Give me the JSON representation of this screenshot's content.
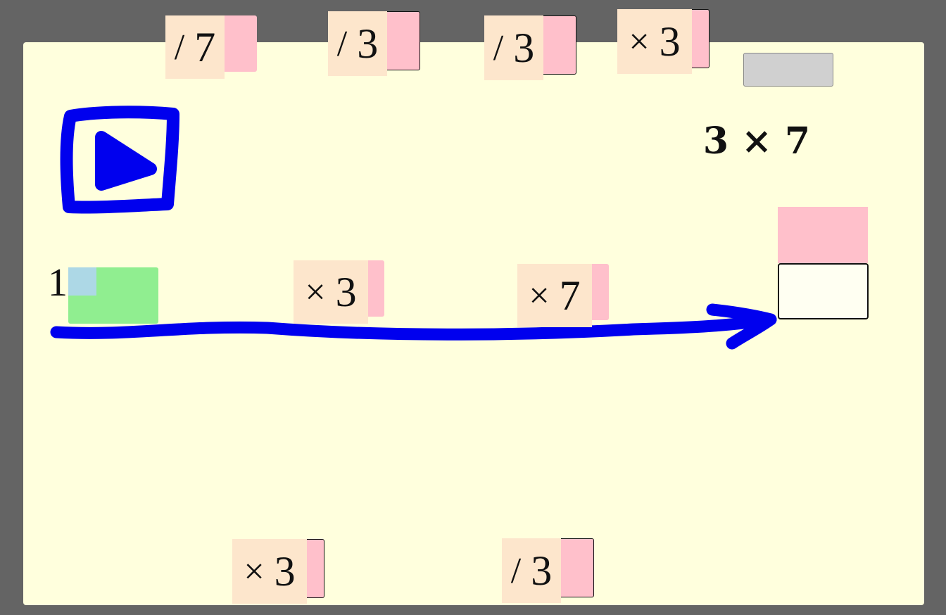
{
  "palette_cards": [
    {
      "op": "/",
      "num": "7"
    },
    {
      "op": "/",
      "num": "3"
    },
    {
      "op": "/",
      "num": "3"
    },
    {
      "op": "×",
      "num": "3"
    }
  ],
  "target": {
    "label": "3 × 7"
  },
  "chain": {
    "start_value": "1",
    "steps": [
      {
        "op": "×",
        "num": "3"
      },
      {
        "op": "×",
        "num": "7"
      }
    ]
  },
  "bottom_cards": [
    {
      "op": "×",
      "num": "3"
    },
    {
      "op": "/",
      "num": "3"
    }
  ],
  "colors": {
    "board": "#ffffdd",
    "card_face": "#fde6cc",
    "card_tab": "#ffc0cb",
    "ink": "#0000ee",
    "start_slot": "#90ee90"
  },
  "icons": {
    "play": "play-icon"
  }
}
